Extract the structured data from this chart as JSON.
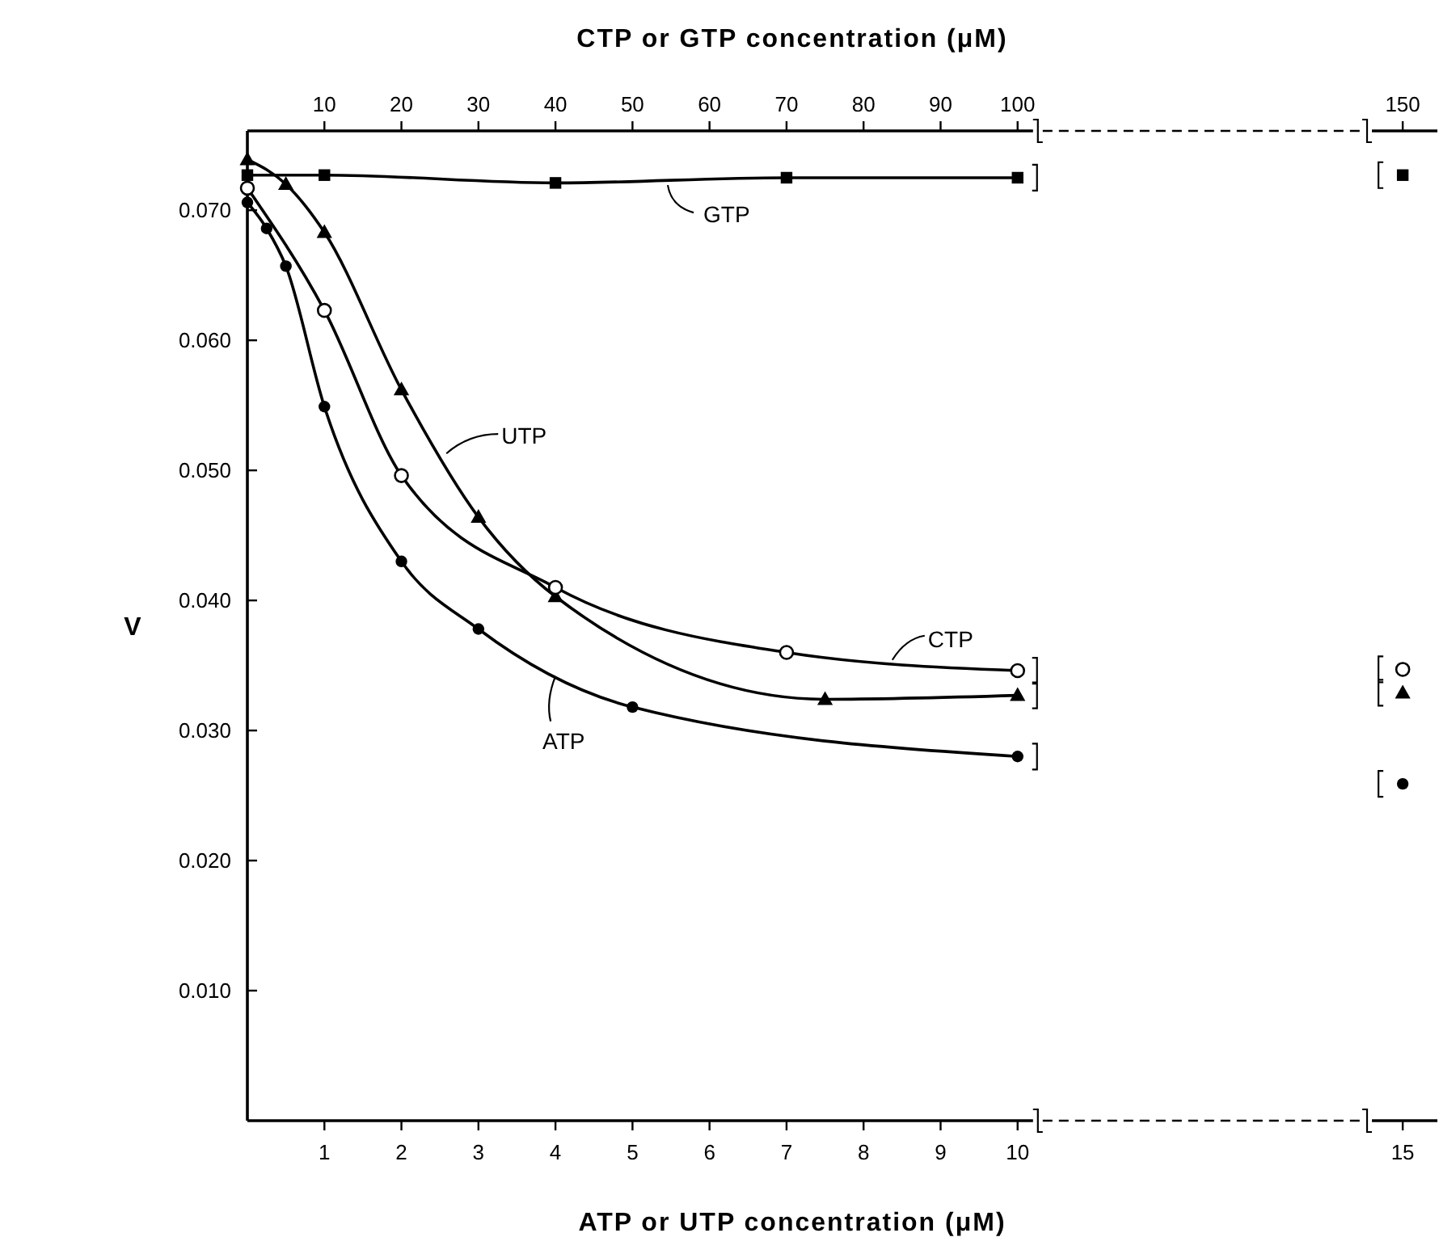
{
  "chart_data": {
    "type": "line",
    "x2label": "CTP or GTP concentration (μM)",
    "xlabel": "ATP or UTP concentration (μM)",
    "ylabel": "V",
    "legend": "center",
    "xlim": [
      0,
      15.45
    ],
    "xticks": [
      1,
      2,
      3,
      4,
      5,
      6,
      7,
      8,
      9,
      10,
      15
    ],
    "x2lim": [
      0,
      154.5
    ],
    "x2ticks": [
      10,
      20,
      30,
      40,
      50,
      60,
      70,
      80,
      90,
      100,
      150
    ],
    "ylim": [
      0,
      0.0761
    ],
    "yticks": [
      {
        "value": 0.01,
        "label": "0.010"
      },
      {
        "value": 0.02,
        "label": "0.020"
      },
      {
        "value": 0.03,
        "label": "0.030"
      },
      {
        "value": 0.04,
        "label": "0.040"
      },
      {
        "value": 0.05,
        "label": "0.050"
      },
      {
        "value": 0.06,
        "label": "0.060"
      },
      {
        "value": 0.07,
        "label": "0.070"
      }
    ],
    "series": [
      {
        "name": "ATP",
        "color": "#000000",
        "marker": "circle",
        "x": [
          0,
          0.25,
          0.5,
          1,
          2,
          3,
          5,
          10
        ],
        "values": [
          0.0706,
          0.0686,
          0.0657,
          0.0549,
          0.043,
          0.0378,
          0.0318,
          0.028
        ]
      },
      {
        "name": "UTP",
        "color": "#000000",
        "marker": "triangle",
        "x": [
          0,
          0.5,
          1,
          2,
          3,
          4,
          7.5,
          10
        ],
        "values": [
          0.0739,
          0.072,
          0.0683,
          0.0562,
          0.0464,
          0.0403,
          0.0324,
          0.0327
        ]
      },
      {
        "name": "CTP",
        "color": "#000000",
        "marker": "circle-open",
        "axis": "x2",
        "x": [
          0,
          10,
          20,
          40,
          70,
          100
        ],
        "values": [
          0.0717,
          0.0623,
          0.0496,
          0.041,
          0.036,
          0.0346
        ]
      },
      {
        "name": "GTP",
        "color": "#000000",
        "marker": "square",
        "axis": "x2",
        "x": [
          0,
          10,
          40,
          70,
          100
        ],
        "values": [
          0.0727,
          0.0727,
          0.0721,
          0.0725,
          0.0725
        ]
      },
      {
        "type": "scatter",
        "color": "#000000",
        "marker": "circle",
        "x": [
          15
        ],
        "values": [
          0.0259
        ]
      },
      {
        "type": "scatter",
        "color": "#000000",
        "marker": "triangle",
        "x": [
          15
        ],
        "values": [
          0.0329
        ]
      },
      {
        "type": "scatter",
        "color": "#000000",
        "marker": "circle-open",
        "axis": "x2",
        "x": [
          150
        ],
        "values": [
          0.0347
        ]
      },
      {
        "type": "scatter",
        "color": "#000000",
        "marker": "square",
        "axis": "x2",
        "x": [
          150
        ],
        "values": [
          0.0727
        ]
      }
    ]
  }
}
